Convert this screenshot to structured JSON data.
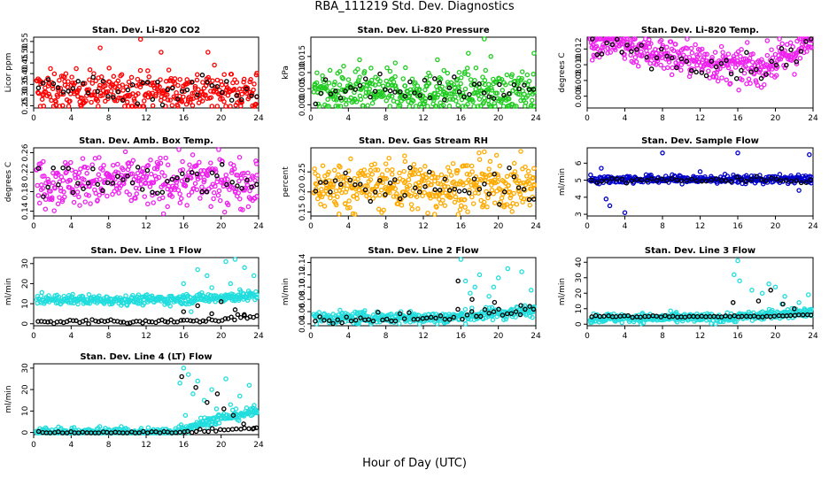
{
  "page": {
    "title": "RBA_111219  Std. Dev. Diagnostics",
    "xlabel": "Hour of Day (UTC)"
  },
  "chart_data": [
    {
      "type": "scatter",
      "title": "Stan. Dev. Li-820 CO2",
      "ylabel": "Licor ppm",
      "xlim": [
        0,
        24
      ],
      "xticks": [
        "0",
        "4",
        "8",
        "12",
        "16",
        "20",
        "24"
      ],
      "ylim": [
        0.24,
        0.57
      ],
      "yticks": [
        "0.25",
        "0.30",
        "0.35",
        "0.40",
        "0.45",
        "0.50",
        "0.55"
      ],
      "series": [
        {
          "name": "scatter",
          "color": "#ff0000",
          "n": 360,
          "x0": 0.3,
          "x1": 23.9,
          "base": [
            0.32
          ],
          "spread": 0.045,
          "outliers": [
            [
              11.4,
              0.56
            ],
            [
              13.6,
              0.5
            ],
            [
              7.1,
              0.52
            ],
            [
              18.6,
              0.5
            ]
          ]
        },
        {
          "name": "mean",
          "color": "#000000",
          "n": 45,
          "x0": 0.5,
          "x1": 23.8,
          "base": [
            0.33
          ],
          "spread": 0.035,
          "outliers": []
        }
      ]
    },
    {
      "type": "scatter",
      "title": "Stan. Dev. Li-820 Pressure",
      "ylabel": "kPa",
      "xlim": [
        0,
        24
      ],
      "xticks": [
        "0",
        "4",
        "8",
        "12",
        "16",
        "20",
        "24"
      ],
      "ylim": [
        -0.001,
        0.021
      ],
      "yticks": [
        "0.000",
        "0.005",
        "0.010",
        "0.015"
      ],
      "series": [
        {
          "name": "scatter",
          "color": "#22cc22",
          "n": 420,
          "x0": 0.3,
          "x1": 23.9,
          "base": [
            0.004
          ],
          "spread": 0.003,
          "outliers": [
            [
              3.5,
              0.012
            ],
            [
              5.2,
              0.014
            ],
            [
              9,
              0.013
            ],
            [
              13.5,
              0.014
            ],
            [
              16.8,
              0.016
            ],
            [
              19.2,
              0.015
            ],
            [
              23.8,
              0.016
            ],
            [
              18.5,
              0.021
            ]
          ]
        },
        {
          "name": "mean",
          "color": "#000000",
          "n": 45,
          "x0": 0.5,
          "x1": 23.8,
          "base": [
            0.005
          ],
          "spread": 0.002,
          "outliers": []
        }
      ]
    },
    {
      "type": "scatter",
      "title": "Stan. Dev. Li-820 Temp.",
      "ylabel": "degrees C",
      "xlim": [
        0,
        24
      ],
      "xticks": [
        "0",
        "4",
        "8",
        "12",
        "16",
        "20",
        "24"
      ],
      "ylim": [
        0.0045,
        0.0135
      ],
      "yticks": [
        "0.006",
        "0.008",
        "0.010",
        "0.012"
      ],
      "series": [
        {
          "name": "scatter",
          "color": "#ee22ee",
          "n": 420,
          "x0": 0.3,
          "x1": 23.9,
          "base": [
            0.0128,
            0.0128,
            0.0118,
            0.011,
            0.0105,
            0.0098,
            0.0095,
            0.0108,
            0.0128
          ],
          "spread": 0.0011,
          "outliers": []
        },
        {
          "name": "mean",
          "color": "#000000",
          "n": 45,
          "x0": 0.5,
          "x1": 23.8,
          "base": [
            0.0128,
            0.0125,
            0.0115,
            0.011,
            0.0105,
            0.0098,
            0.0095,
            0.0108,
            0.0128
          ],
          "spread": 0.0008,
          "outliers": []
        }
      ]
    },
    {
      "type": "scatter",
      "title": "Stan. Dev. Amb. Box Temp.",
      "ylabel": "degrees C",
      "xlim": [
        0,
        24
      ],
      "xticks": [
        "0",
        "4",
        "8",
        "12",
        "16",
        "20",
        "24"
      ],
      "ylim": [
        0.13,
        0.27
      ],
      "yticks": [
        "0.14",
        "0.18",
        "0.22",
        "0.26"
      ],
      "series": [
        {
          "name": "scatter",
          "color": "#ee22ee",
          "n": 380,
          "x0": 0.3,
          "x1": 23.9,
          "base": [
            0.2
          ],
          "spread": 0.025,
          "outliers": []
        },
        {
          "name": "mean",
          "color": "#000000",
          "n": 45,
          "x0": 0.5,
          "x1": 23.8,
          "base": [
            0.2
          ],
          "spread": 0.018,
          "outliers": []
        }
      ]
    },
    {
      "type": "scatter",
      "title": "Stan. Dev. Gas Stream RH",
      "ylabel": "percent",
      "xlim": [
        0,
        24
      ],
      "xticks": [
        "0",
        "4",
        "8",
        "12",
        "16",
        "20",
        "24"
      ],
      "ylim": [
        0.14,
        0.31
      ],
      "yticks": [
        "0.15",
        "0.20",
        "0.25"
      ],
      "series": [
        {
          "name": "scatter",
          "color": "#ffaa00",
          "n": 420,
          "x0": 0.3,
          "x1": 23.9,
          "base": [
            0.215
          ],
          "spread": 0.03,
          "outliers": [
            [
              3,
              0.145
            ],
            [
              13.2,
              0.14
            ],
            [
              8,
              0.27
            ],
            [
              10,
              0.29
            ],
            [
              18.5,
              0.3
            ]
          ]
        },
        {
          "name": "mean",
          "color": "#000000",
          "n": 45,
          "x0": 0.5,
          "x1": 23.8,
          "base": [
            0.215
          ],
          "spread": 0.022,
          "outliers": []
        }
      ]
    },
    {
      "type": "scatter",
      "title": "Stan. Dev. Sample Flow",
      "ylabel": "ml/min",
      "xlim": [
        0,
        24
      ],
      "xticks": [
        "0",
        "4",
        "8",
        "12",
        "16",
        "20",
        "24"
      ],
      "ylim": [
        2.9,
        6.9
      ],
      "yticks": [
        "3",
        "4",
        "5",
        "6"
      ],
      "series": [
        {
          "name": "scatter",
          "color": "#0000cc",
          "n": 340,
          "x0": 0.3,
          "x1": 23.9,
          "base": [
            5.05
          ],
          "spread": 0.12,
          "outliers": [
            [
              2,
              3.9
            ],
            [
              2.4,
              3.5
            ],
            [
              4,
              3.1
            ],
            [
              1.5,
              5.7
            ],
            [
              8,
              6.6
            ],
            [
              12,
              5.5
            ],
            [
              16,
              6.6
            ],
            [
              23.6,
              6.5
            ],
            [
              22.5,
              4.4
            ]
          ]
        },
        {
          "name": "mean",
          "color": "#000000",
          "n": 45,
          "x0": 0.5,
          "x1": 23.8,
          "base": [
            5.0
          ],
          "spread": 0.08,
          "outliers": []
        }
      ]
    },
    {
      "type": "scatter",
      "title": "Stan. Dev. Line 1 Flow",
      "ylabel": "ml/min",
      "xlim": [
        0,
        24
      ],
      "xticks": [
        "0",
        "4",
        "8",
        "12",
        "16",
        "20",
        "24"
      ],
      "ylim": [
        -1,
        33
      ],
      "yticks": [
        "0",
        "10",
        "20",
        "30"
      ],
      "series": [
        {
          "name": "scatter",
          "color": "#22dddd",
          "n": 360,
          "x0": 0.3,
          "x1": 23.9,
          "base": [
            12,
            12,
            12,
            12,
            13,
            14
          ],
          "spread": 1.2,
          "outliers": [
            [
              16,
              20
            ],
            [
              17.5,
              27
            ],
            [
              18.5,
              24
            ],
            [
              20.5,
              31
            ],
            [
              21.5,
              33
            ],
            [
              22.5,
              28
            ],
            [
              23.5,
              24
            ],
            [
              16.8,
              6
            ],
            [
              19,
              18
            ],
            [
              20,
              14
            ],
            [
              21,
              20
            ],
            [
              22,
              17
            ],
            [
              23,
              13
            ]
          ]
        },
        {
          "name": "mean",
          "color": "#000000",
          "n": 70,
          "x0": 0.5,
          "x1": 23.8,
          "base": [
            1,
            1,
            1,
            1,
            2,
            4
          ],
          "spread": 0.6,
          "outliers": [
            [
              16,
              6
            ],
            [
              17.5,
              9
            ],
            [
              19,
              5
            ],
            [
              20,
              11
            ],
            [
              21.5,
              7
            ],
            [
              22.5,
              4
            ]
          ]
        }
      ]
    },
    {
      "type": "scatter",
      "title": "Stan. Dev. Line 2 Flow",
      "ylabel": "ml/min",
      "xlim": [
        0,
        24
      ],
      "xticks": [
        "0",
        "4",
        "8",
        "12",
        "16",
        "20",
        "24"
      ],
      "ylim": [
        0.037,
        0.148
      ],
      "yticks": [
        "0.04",
        "0.06",
        "0.08",
        "0.10",
        "0.12",
        "0.14"
      ],
      "series": [
        {
          "name": "scatter",
          "color": "#22dddd",
          "n": 360,
          "x0": 0.3,
          "x1": 23.9,
          "base": [
            0.05,
            0.05,
            0.05,
            0.05,
            0.056,
            0.062
          ],
          "spread": 0.005,
          "outliers": [
            [
              16,
              0.145
            ],
            [
              16.5,
              0.11
            ],
            [
              17.5,
              0.1
            ],
            [
              18,
              0.12
            ],
            [
              19,
              0.085
            ],
            [
              20,
              0.115
            ],
            [
              21,
              0.13
            ],
            [
              22.5,
              0.125
            ],
            [
              23.5,
              0.095
            ],
            [
              17,
              0.09
            ],
            [
              19.5,
              0.1
            ]
          ]
        },
        {
          "name": "mean",
          "color": "#000000",
          "n": 50,
          "x0": 0.5,
          "x1": 23.8,
          "base": [
            0.05,
            0.05,
            0.05,
            0.05,
            0.058,
            0.063
          ],
          "spread": 0.004,
          "outliers": [
            [
              15.7,
              0.11
            ],
            [
              17.2,
              0.08
            ],
            [
              19.6,
              0.075
            ],
            [
              22.4,
              0.07
            ]
          ]
        }
      ]
    },
    {
      "type": "scatter",
      "title": "Stan. Dev. Line 3 Flow",
      "ylabel": "ml/min",
      "xlim": [
        0,
        24
      ],
      "xticks": [
        "0",
        "4",
        "8",
        "12",
        "16",
        "20",
        "24"
      ],
      "ylim": [
        -1,
        43
      ],
      "yticks": [
        "0",
        "10",
        "20",
        "30",
        "40"
      ],
      "series": [
        {
          "name": "scatter",
          "color": "#22dddd",
          "n": 360,
          "x0": 0.3,
          "x1": 23.9,
          "base": [
            4,
            4,
            4,
            4,
            6,
            8
          ],
          "spread": 1.5,
          "outliers": [
            [
              15.6,
              32
            ],
            [
              16,
              41
            ],
            [
              16.2,
              28
            ],
            [
              17.5,
              22
            ],
            [
              18.6,
              20
            ],
            [
              19.3,
              26
            ],
            [
              20,
              24
            ],
            [
              21,
              18
            ],
            [
              22.5,
              14
            ],
            [
              23.5,
              19
            ],
            [
              20.7,
              13
            ]
          ]
        },
        {
          "name": "mean",
          "color": "#000000",
          "n": 55,
          "x0": 0.5,
          "x1": 23.8,
          "base": [
            5,
            5,
            5,
            5,
            5,
            6
          ],
          "spread": 0.3,
          "outliers": [
            [
              15.5,
              14
            ],
            [
              18.2,
              15
            ],
            [
              19.5,
              22
            ],
            [
              20.8,
              13
            ],
            [
              22,
              10
            ]
          ]
        }
      ]
    },
    {
      "type": "scatter",
      "title": "Stan. Dev. Line 4 (LT) Flow",
      "ylabel": "ml/min",
      "xlim": [
        0,
        24
      ],
      "xticks": [
        "0",
        "4",
        "8",
        "12",
        "16",
        "20",
        "24"
      ],
      "ylim": [
        -1,
        32
      ],
      "yticks": [
        "0",
        "10",
        "20",
        "30"
      ],
      "series": [
        {
          "name": "scatter",
          "color": "#22dddd",
          "n": 340,
          "x0": 0.3,
          "x1": 23.9,
          "base": [
            0,
            0,
            0,
            0,
            6,
            10
          ],
          "spread": 1.2,
          "outliers": [
            [
              15.6,
              23
            ],
            [
              16,
              30
            ],
            [
              16.5,
              27
            ],
            [
              17,
              18
            ],
            [
              17.5,
              24
            ],
            [
              18.2,
              15
            ],
            [
              19,
              20
            ],
            [
              19.5,
              11
            ],
            [
              20.5,
              25
            ],
            [
              21,
              13
            ],
            [
              22,
              17
            ],
            [
              23,
              22
            ],
            [
              23.5,
              9
            ],
            [
              16.2,
              8
            ],
            [
              18.7,
              6
            ]
          ]
        },
        {
          "name": "mean",
          "color": "#000000",
          "n": 55,
          "x0": 0.5,
          "x1": 23.8,
          "base": [
            0,
            0,
            0,
            0,
            1,
            2
          ],
          "spread": 0.3,
          "outliers": [
            [
              15.8,
              26
            ],
            [
              17.3,
              21
            ],
            [
              18.5,
              14
            ],
            [
              19.6,
              18
            ],
            [
              20.3,
              11
            ],
            [
              21.3,
              8
            ],
            [
              22.4,
              4
            ],
            [
              23.5,
              2
            ]
          ]
        }
      ]
    }
  ]
}
